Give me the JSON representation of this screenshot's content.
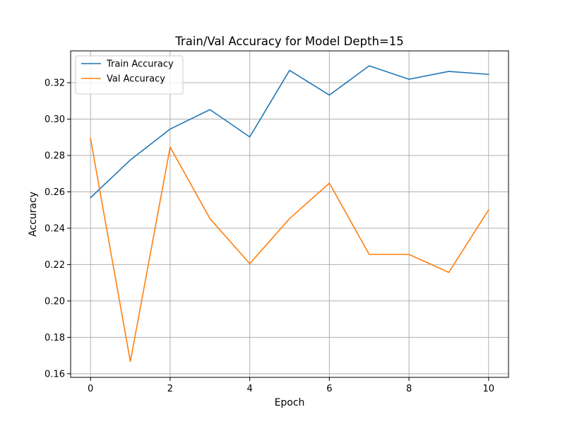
{
  "chart_data": {
    "type": "line",
    "title": "Train/Val Accuracy for Model Depth=15",
    "xlabel": "Epoch",
    "ylabel": "Accuracy",
    "x": [
      0,
      1,
      2,
      3,
      4,
      5,
      6,
      7,
      8,
      9,
      10
    ],
    "xlim": [
      -0.5,
      10.5
    ],
    "ylim": [
      0.158,
      0.3375
    ],
    "x_ticks": [
      0,
      2,
      4,
      6,
      8,
      10
    ],
    "x_tick_labels": [
      "0",
      "2",
      "4",
      "6",
      "8",
      "10"
    ],
    "y_ticks": [
      0.16,
      0.18,
      0.2,
      0.22,
      0.24,
      0.26,
      0.28,
      0.3,
      0.32
    ],
    "y_tick_labels": [
      "0.16",
      "0.18",
      "0.20",
      "0.22",
      "0.24",
      "0.26",
      "0.28",
      "0.30",
      "0.32"
    ],
    "grid": true,
    "legend_position": "top-left",
    "series": [
      {
        "name": "Train Accuracy",
        "color": "#1f77b4",
        "values": [
          0.2568,
          0.2775,
          0.2945,
          0.3052,
          0.2902,
          0.3268,
          0.3132,
          0.3293,
          0.3219,
          0.3262,
          0.3246
        ]
      },
      {
        "name": "Val Accuracy",
        "color": "#ff7f0e",
        "values": [
          0.2893,
          0.1667,
          0.2846,
          0.2453,
          0.2205,
          0.2453,
          0.2648,
          0.2256,
          0.2256,
          0.2157,
          0.2501
        ]
      }
    ]
  }
}
